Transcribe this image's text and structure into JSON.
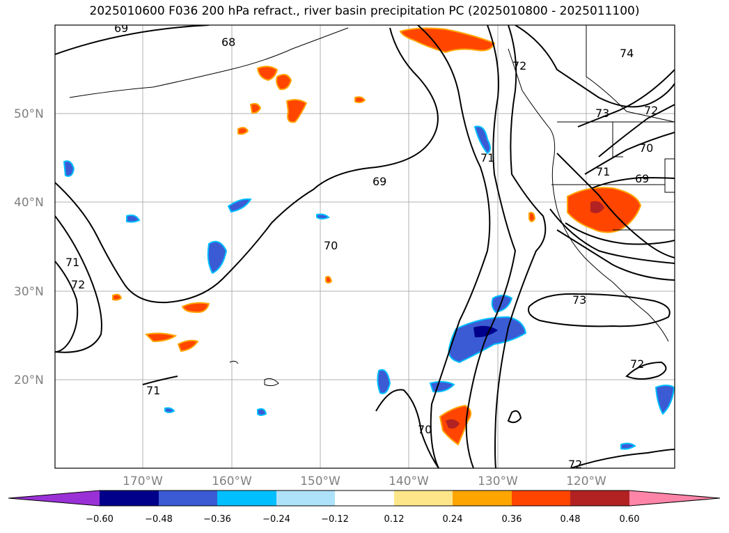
{
  "title": "2025010600 F036 200 hPa refract., river basin precipitation PC (2025010800 - 2025011100)",
  "axes": {
    "lat_labels": [
      "50°N",
      "40°N",
      "30°N",
      "20°N"
    ],
    "lon_labels": [
      "170°W",
      "160°W",
      "150°W",
      "140°W",
      "130°W",
      "120°W"
    ]
  },
  "contour_labels": [
    "69",
    "68",
    "72",
    "74",
    "69",
    "71",
    "73",
    "72",
    "70",
    "71",
    "69",
    "70",
    "71",
    "72",
    "73",
    "72",
    "71",
    "70",
    "72"
  ],
  "colorbar": {
    "colors": [
      "#9a31d6",
      "#00008b",
      "#3a5bd4",
      "#00bfff",
      "#aee2fa",
      "#ffffff",
      "#fde68a",
      "#ffa500",
      "#ff4500",
      "#b22222",
      "#ff85a8"
    ],
    "tick_labels": [
      "−0.60",
      "−0.48",
      "−0.36",
      "−0.24",
      "−0.12",
      "0.12",
      "0.24",
      "0.36",
      "0.48",
      "0.60"
    ]
  }
}
